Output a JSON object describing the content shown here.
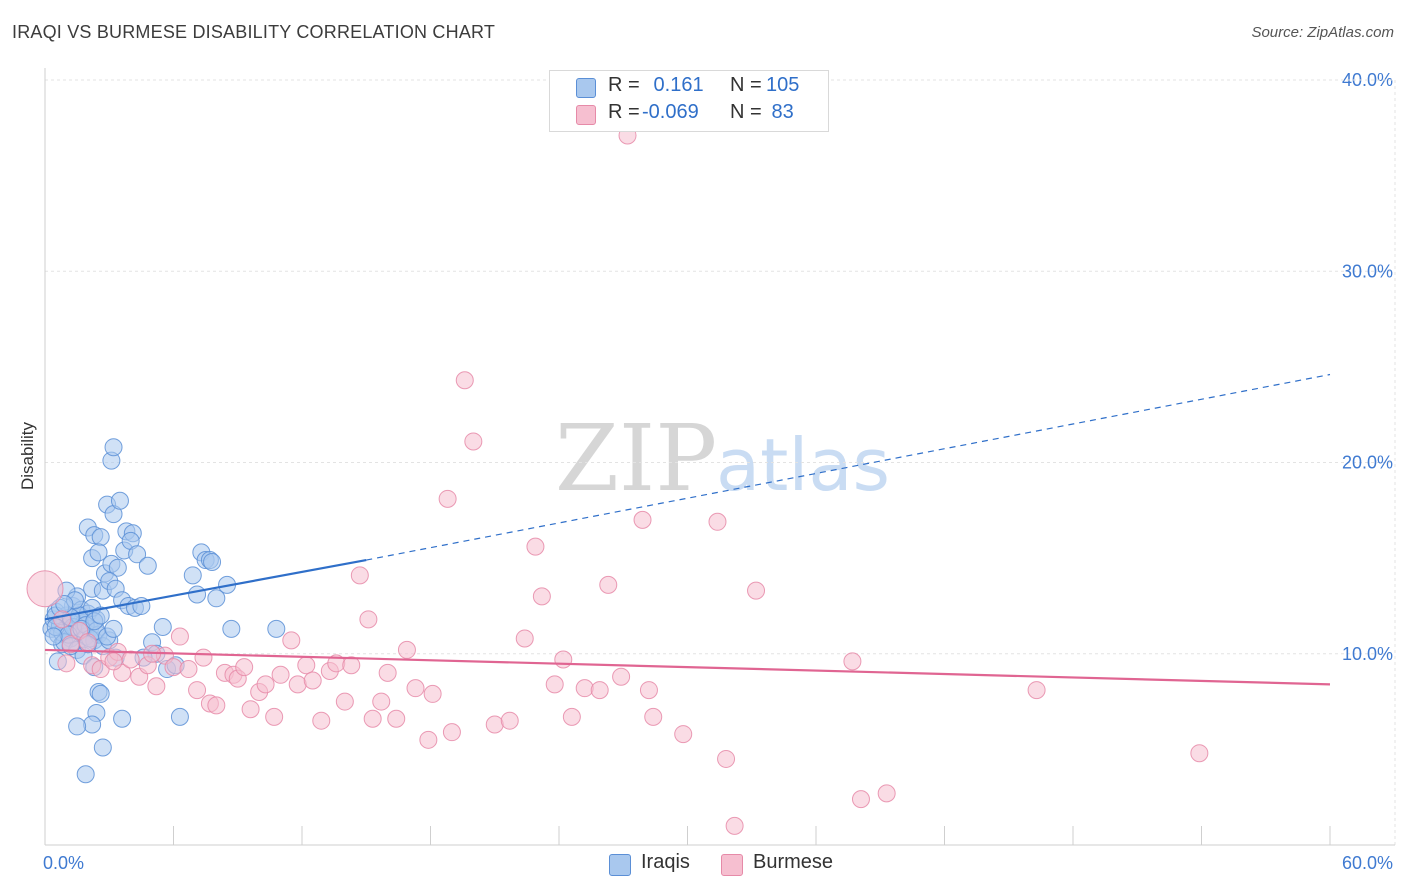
{
  "title": "IRAQI VS BURMESE DISABILITY CORRELATION CHART",
  "source": "Source: ZipAtlas.com",
  "watermark": {
    "zip": "ZIP",
    "atlas": "atlas"
  },
  "colors": {
    "iraqis_fill": "#a9c8ee",
    "iraqis_stroke": "#5b8fd6",
    "iraqis_line": "#2f6fc9",
    "burmese_fill": "#f6bfd0",
    "burmese_stroke": "#e68aa8",
    "burmese_line": "#e06592",
    "axis_label": "#3f7ad1",
    "grid": "#e3e3e3"
  },
  "legend": {
    "iraqis": {
      "r_label": "R = ",
      "r_value": " 0.161",
      "n_label": "N = ",
      "n_value": "105"
    },
    "burmese": {
      "r_label": "R = ",
      "r_value": "-0.069",
      "n_label": "N = ",
      "n_value": " 83"
    }
  },
  "chart_data": {
    "type": "scatter",
    "title": "IRAQI VS BURMESE DISABILITY CORRELATION CHART",
    "xlabel": "",
    "ylabel": "Disability",
    "xlim": [
      0,
      60
    ],
    "ylim": [
      0,
      40
    ],
    "x_tick_labels": [
      "0.0%",
      "60.0%"
    ],
    "y_tick_labels": [
      "10.0%",
      "20.0%",
      "30.0%",
      "40.0%"
    ],
    "y_ticks": [
      10,
      20,
      30,
      40
    ],
    "grid": true,
    "legend_position": "top-center",
    "series": [
      {
        "name": "Iraqis",
        "R": 0.161,
        "N": 105,
        "trend": {
          "x0": 0,
          "y0": 11.8,
          "x1": 15,
          "y1": 14.9,
          "dashed_to_x": 60,
          "dashed_to_y": 24.6
        },
        "points": [
          [
            0.3,
            11.3
          ],
          [
            0.4,
            11.8
          ],
          [
            0.5,
            12.2
          ],
          [
            0.6,
            11.0
          ],
          [
            0.7,
            11.5
          ],
          [
            0.8,
            10.5
          ],
          [
            0.9,
            11.7
          ],
          [
            1.0,
            12.0
          ],
          [
            1.1,
            11.2
          ],
          [
            1.2,
            10.8
          ],
          [
            1.3,
            12.5
          ],
          [
            1.4,
            11.4
          ],
          [
            1.5,
            13.0
          ],
          [
            1.6,
            11.9
          ],
          [
            1.7,
            12.3
          ],
          [
            1.8,
            11.6
          ],
          [
            1.9,
            10.9
          ],
          [
            2.0,
            12.1
          ],
          [
            2.1,
            11.3
          ],
          [
            2.2,
            13.4
          ],
          [
            2.3,
            10.7
          ],
          [
            2.4,
            11.8
          ],
          [
            0.5,
            12.0
          ],
          [
            0.8,
            11.1
          ],
          [
            1.0,
            13.3
          ],
          [
            1.3,
            11.4
          ],
          [
            1.6,
            12.0
          ],
          [
            1.9,
            11.5
          ],
          [
            2.2,
            12.4
          ],
          [
            2.5,
            11.0
          ],
          [
            0.6,
            9.6
          ],
          [
            0.9,
            10.6
          ],
          [
            1.2,
            11.9
          ],
          [
            1.5,
            10.2
          ],
          [
            1.8,
            9.9
          ],
          [
            2.1,
            10.8
          ],
          [
            2.4,
            11.2
          ],
          [
            2.7,
            10.4
          ],
          [
            3.0,
            10.7
          ],
          [
            3.3,
            9.8
          ],
          [
            2.0,
            16.6
          ],
          [
            2.3,
            16.2
          ],
          [
            2.6,
            16.1
          ],
          [
            2.9,
            17.8
          ],
          [
            3.2,
            17.3
          ],
          [
            3.5,
            18.0
          ],
          [
            3.8,
            16.4
          ],
          [
            4.1,
            16.3
          ],
          [
            2.2,
            15.0
          ],
          [
            2.5,
            15.3
          ],
          [
            2.8,
            14.2
          ],
          [
            3.1,
            14.7
          ],
          [
            3.4,
            14.5
          ],
          [
            3.7,
            15.4
          ],
          [
            4.0,
            15.9
          ],
          [
            4.3,
            15.2
          ],
          [
            2.7,
            13.3
          ],
          [
            3.0,
            13.8
          ],
          [
            3.3,
            13.4
          ],
          [
            3.6,
            12.8
          ],
          [
            3.9,
            12.5
          ],
          [
            4.2,
            12.4
          ],
          [
            4.5,
            12.5
          ],
          [
            4.8,
            14.6
          ],
          [
            3.1,
            20.1
          ],
          [
            3.2,
            20.8
          ],
          [
            6.9,
            14.1
          ],
          [
            7.1,
            13.1
          ],
          [
            7.3,
            15.3
          ],
          [
            7.5,
            14.9
          ],
          [
            7.7,
            14.9
          ],
          [
            7.8,
            14.8
          ],
          [
            8.0,
            12.9
          ],
          [
            8.5,
            13.6
          ],
          [
            8.7,
            11.3
          ],
          [
            10.8,
            11.3
          ],
          [
            5.0,
            10.6
          ],
          [
            5.2,
            10.0
          ],
          [
            5.5,
            11.4
          ],
          [
            5.7,
            9.2
          ],
          [
            6.1,
            9.4
          ],
          [
            4.6,
            9.8
          ],
          [
            2.3,
            9.3
          ],
          [
            2.5,
            8.0
          ],
          [
            2.6,
            7.9
          ],
          [
            2.4,
            6.9
          ],
          [
            2.2,
            6.3
          ],
          [
            1.5,
            6.2
          ],
          [
            3.6,
            6.6
          ],
          [
            6.3,
            6.7
          ],
          [
            2.7,
            5.1
          ],
          [
            1.9,
            3.7
          ],
          [
            0.5,
            11.4
          ],
          [
            0.7,
            12.4
          ],
          [
            1.1,
            11.0
          ],
          [
            1.4,
            12.8
          ],
          [
            1.7,
            11.3
          ],
          [
            2.0,
            10.5
          ],
          [
            2.3,
            11.7
          ],
          [
            2.6,
            12.0
          ],
          [
            2.9,
            10.9
          ],
          [
            3.2,
            11.3
          ],
          [
            0.4,
            10.9
          ],
          [
            0.9,
            12.6
          ],
          [
            1.2,
            10.4
          ]
        ]
      },
      {
        "name": "Burmese",
        "R": -0.069,
        "N": 83,
        "trend": {
          "x0": 0,
          "y0": 10.2,
          "x1": 60,
          "y1": 8.4
        },
        "points": [
          [
            0.0,
            13.4
          ],
          [
            0.8,
            11.8
          ],
          [
            1.2,
            10.5
          ],
          [
            1.6,
            11.2
          ],
          [
            2.0,
            10.6
          ],
          [
            2.2,
            9.4
          ],
          [
            2.6,
            9.2
          ],
          [
            3.0,
            9.8
          ],
          [
            3.4,
            10.1
          ],
          [
            3.6,
            9.0
          ],
          [
            4.0,
            9.7
          ],
          [
            4.4,
            8.8
          ],
          [
            4.8,
            9.4
          ],
          [
            5.2,
            8.3
          ],
          [
            5.6,
            9.9
          ],
          [
            6.0,
            9.3
          ],
          [
            6.3,
            10.9
          ],
          [
            6.7,
            9.2
          ],
          [
            7.1,
            8.1
          ],
          [
            7.4,
            9.8
          ],
          [
            7.7,
            7.4
          ],
          [
            8.0,
            7.3
          ],
          [
            8.4,
            9.0
          ],
          [
            8.8,
            8.9
          ],
          [
            9.0,
            8.7
          ],
          [
            9.3,
            9.3
          ],
          [
            9.6,
            7.1
          ],
          [
            10.0,
            8.0
          ],
          [
            10.3,
            8.4
          ],
          [
            10.7,
            6.7
          ],
          [
            11.0,
            8.9
          ],
          [
            11.5,
            10.7
          ],
          [
            11.8,
            8.4
          ],
          [
            12.2,
            9.4
          ],
          [
            12.5,
            8.6
          ],
          [
            12.9,
            6.5
          ],
          [
            13.3,
            9.1
          ],
          [
            13.6,
            9.5
          ],
          [
            14.0,
            7.5
          ],
          [
            14.3,
            9.4
          ],
          [
            14.7,
            14.1
          ],
          [
            15.1,
            11.8
          ],
          [
            15.3,
            6.6
          ],
          [
            15.7,
            7.5
          ],
          [
            16.0,
            9.0
          ],
          [
            16.4,
            6.6
          ],
          [
            16.9,
            10.2
          ],
          [
            17.3,
            8.2
          ],
          [
            17.9,
            5.5
          ],
          [
            18.1,
            7.9
          ],
          [
            18.8,
            18.1
          ],
          [
            19.0,
            5.9
          ],
          [
            19.6,
            24.3
          ],
          [
            20.0,
            21.1
          ],
          [
            21.0,
            6.3
          ],
          [
            21.7,
            6.5
          ],
          [
            22.4,
            10.8
          ],
          [
            22.9,
            15.6
          ],
          [
            23.2,
            13.0
          ],
          [
            23.8,
            8.4
          ],
          [
            24.2,
            9.7
          ],
          [
            24.6,
            6.7
          ],
          [
            25.2,
            8.2
          ],
          [
            25.9,
            8.1
          ],
          [
            26.3,
            13.6
          ],
          [
            26.9,
            8.8
          ],
          [
            27.2,
            37.1
          ],
          [
            27.9,
            17.0
          ],
          [
            28.2,
            8.1
          ],
          [
            28.4,
            6.7
          ],
          [
            29.8,
            5.8
          ],
          [
            31.4,
            16.9
          ],
          [
            31.8,
            4.5
          ],
          [
            32.2,
            1.0
          ],
          [
            33.2,
            13.3
          ],
          [
            37.7,
            9.6
          ],
          [
            38.1,
            2.4
          ],
          [
            39.3,
            2.7
          ],
          [
            46.3,
            8.1
          ],
          [
            53.9,
            4.8
          ],
          [
            3.2,
            9.6
          ],
          [
            5.0,
            10.0
          ],
          [
            1.0,
            9.5
          ]
        ]
      }
    ]
  },
  "bottom_legend": {
    "iraqis": "Iraqis",
    "burmese": "Burmese"
  }
}
